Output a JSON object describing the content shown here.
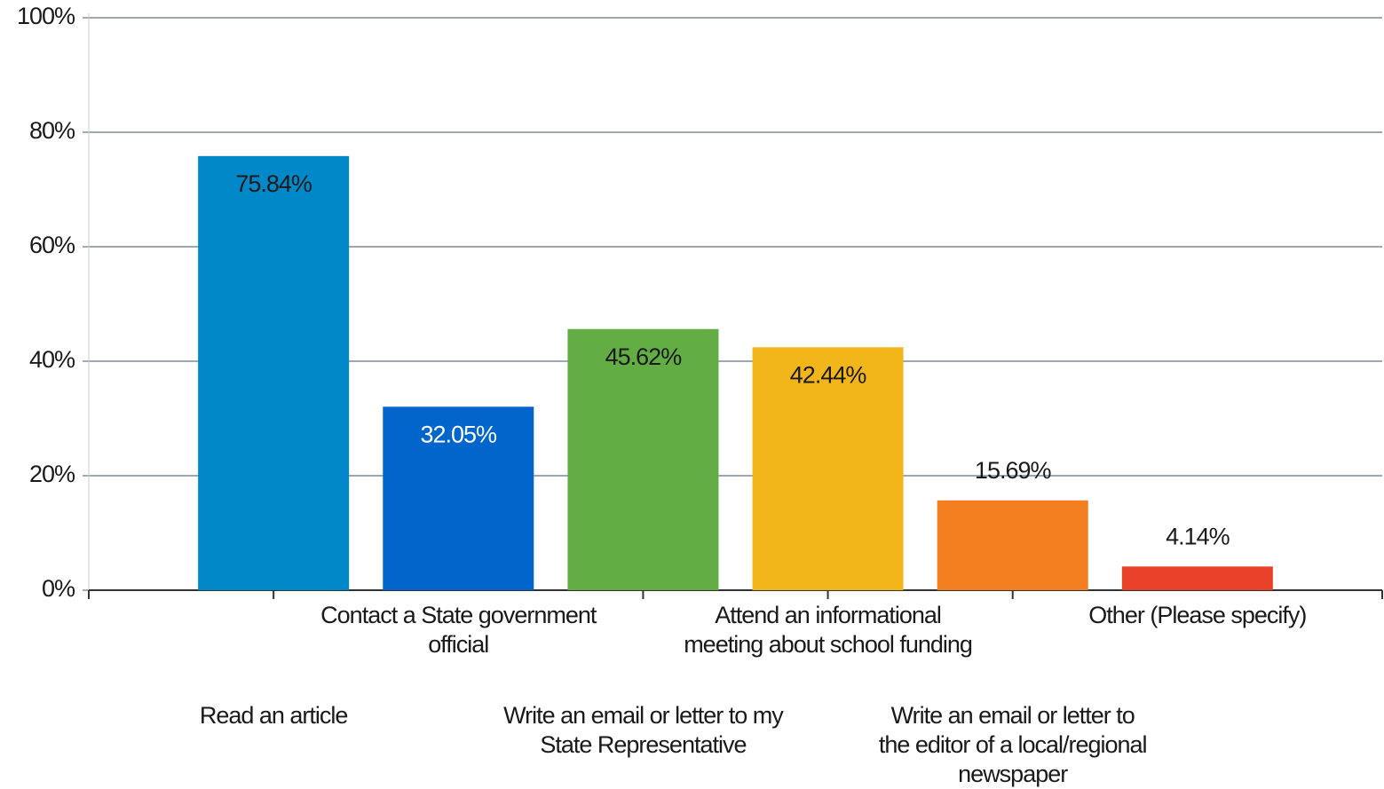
{
  "chart_data": {
    "type": "bar",
    "categories": [
      "Read an article",
      "Contact a State government official",
      "Write an email or letter to my State Representative",
      "Attend an informational meeting about school funding",
      "Write an email or letter to the editor of a local/regional newspaper",
      "Other (Please specify)"
    ],
    "values": [
      75.84,
      32.05,
      45.62,
      42.44,
      15.69,
      4.14
    ],
    "value_labels": [
      "75.84%",
      "32.05%",
      "45.62%",
      "42.44%",
      "15.69%",
      "4.14%"
    ],
    "colors": [
      "#0088c9",
      "#0066cc",
      "#62ae45",
      "#f2b61b",
      "#f47f20",
      "#e8432a"
    ],
    "value_label_colors": [
      "#1a1a1a",
      "#ffffff",
      "#1a1a1a",
      "#1a1a1a",
      "#1a1a1a",
      "#1a1a1a"
    ],
    "ylim": [
      0,
      100
    ],
    "yticks": [
      {
        "value": 0,
        "label": "0%"
      },
      {
        "value": 20,
        "label": "20%"
      },
      {
        "value": 40,
        "label": "40%"
      },
      {
        "value": 60,
        "label": "60%"
      },
      {
        "value": 80,
        "label": "80%"
      },
      {
        "value": 100,
        "label": "100%"
      }
    ],
    "grid": true
  }
}
